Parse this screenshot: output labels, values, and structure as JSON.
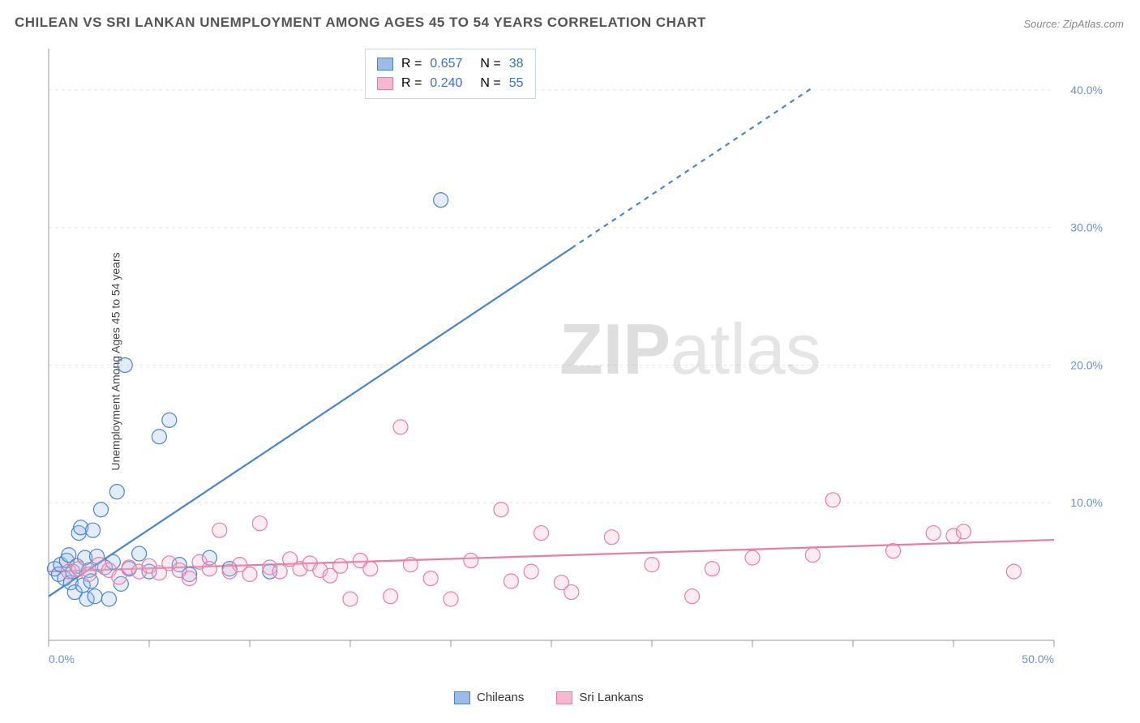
{
  "title": "CHILEAN VS SRI LANKAN UNEMPLOYMENT AMONG AGES 45 TO 54 YEARS CORRELATION CHART",
  "source": "Source: ZipAtlas.com",
  "y_axis_label": "Unemployment Among Ages 45 to 54 years",
  "watermark_bold": "ZIP",
  "watermark_light": "atlas",
  "chart": {
    "type": "scatter",
    "background_color": "#ffffff",
    "grid_color": "#e6e6e6",
    "axis_line_color": "#999999",
    "tick_color": "#999999",
    "xlim": [
      0,
      50
    ],
    "ylim": [
      0,
      43
    ],
    "x_ticks": [
      0,
      5,
      10,
      15,
      20,
      25,
      30,
      35,
      40,
      45,
      50
    ],
    "y_ticks": [
      10,
      20,
      30,
      40
    ],
    "x_tick_labels": {
      "0": "0.0%",
      "50": "50.0%"
    },
    "y_tick_labels": {
      "10": "10.0%",
      "20": "20.0%",
      "30": "30.0%",
      "40": "40.0%"
    },
    "tick_label_color": "#6a8fd8",
    "tick_label_fontsize": 14,
    "marker_radius": 9,
    "marker_stroke_width": 1.2,
    "marker_fill_opacity": 0.28,
    "series": [
      {
        "name": "Chileans",
        "color_stroke": "#4a84d0",
        "color_fill": "#9cbce8",
        "R": "0.657",
        "N": "38",
        "trend": {
          "x1": 0,
          "y1": 3.2,
          "x2": 26,
          "y2": 28.5,
          "dash_extend_to_x": 38,
          "stroke_width": 2.2
        },
        "points": [
          [
            0.3,
            5.2
          ],
          [
            0.5,
            4.8
          ],
          [
            0.6,
            5.5
          ],
          [
            0.8,
            4.5
          ],
          [
            0.9,
            5.8
          ],
          [
            1.0,
            6.2
          ],
          [
            1.1,
            4.2
          ],
          [
            1.2,
            5.0
          ],
          [
            1.3,
            3.5
          ],
          [
            1.4,
            5.4
          ],
          [
            1.5,
            7.8
          ],
          [
            1.6,
            8.2
          ],
          [
            1.7,
            4.0
          ],
          [
            1.8,
            6.0
          ],
          [
            1.9,
            3.0
          ],
          [
            2.0,
            5.1
          ],
          [
            2.1,
            4.3
          ],
          [
            2.2,
            8.0
          ],
          [
            2.3,
            3.2
          ],
          [
            2.4,
            6.1
          ],
          [
            2.6,
            9.5
          ],
          [
            2.8,
            5.3
          ],
          [
            3.0,
            3.0
          ],
          [
            3.2,
            5.7
          ],
          [
            3.4,
            10.8
          ],
          [
            3.6,
            4.1
          ],
          [
            3.8,
            20.0
          ],
          [
            4.0,
            5.2
          ],
          [
            4.5,
            6.3
          ],
          [
            5.0,
            5.0
          ],
          [
            5.5,
            14.8
          ],
          [
            6.0,
            16.0
          ],
          [
            6.5,
            5.5
          ],
          [
            7.0,
            4.8
          ],
          [
            8.0,
            6.0
          ],
          [
            9.0,
            5.2
          ],
          [
            11.0,
            5.0
          ],
          [
            19.5,
            32.0
          ]
        ]
      },
      {
        "name": "Sri Lankans",
        "color_stroke": "#e77da6",
        "color_fill": "#f4b9ce",
        "R": "0.240",
        "N": "55",
        "trend": {
          "x1": 0,
          "y1": 5.0,
          "x2": 50,
          "y2": 7.3,
          "stroke_width": 2.2
        },
        "points": [
          [
            1.0,
            5.0
          ],
          [
            1.5,
            5.2
          ],
          [
            2.0,
            4.8
          ],
          [
            2.5,
            5.5
          ],
          [
            3.0,
            5.1
          ],
          [
            3.5,
            4.6
          ],
          [
            4.0,
            5.3
          ],
          [
            4.5,
            5.0
          ],
          [
            5.0,
            5.4
          ],
          [
            5.5,
            4.9
          ],
          [
            6.0,
            5.6
          ],
          [
            6.5,
            5.1
          ],
          [
            7.0,
            4.5
          ],
          [
            7.5,
            5.7
          ],
          [
            8.0,
            5.2
          ],
          [
            8.5,
            8.0
          ],
          [
            9.0,
            5.0
          ],
          [
            9.5,
            5.5
          ],
          [
            10.0,
            4.8
          ],
          [
            10.5,
            8.5
          ],
          [
            11.0,
            5.3
          ],
          [
            11.5,
            5.0
          ],
          [
            12.0,
            5.9
          ],
          [
            12.5,
            5.2
          ],
          [
            13.0,
            5.6
          ],
          [
            13.5,
            5.1
          ],
          [
            14.0,
            4.7
          ],
          [
            14.5,
            5.4
          ],
          [
            15.0,
            3.0
          ],
          [
            15.5,
            5.8
          ],
          [
            16.0,
            5.2
          ],
          [
            17.0,
            3.2
          ],
          [
            17.5,
            15.5
          ],
          [
            18.0,
            5.5
          ],
          [
            19.0,
            4.5
          ],
          [
            20.0,
            3.0
          ],
          [
            21.0,
            5.8
          ],
          [
            22.5,
            9.5
          ],
          [
            23.0,
            4.3
          ],
          [
            24.0,
            5.0
          ],
          [
            24.5,
            7.8
          ],
          [
            25.5,
            4.2
          ],
          [
            26.0,
            3.5
          ],
          [
            28.0,
            7.5
          ],
          [
            30.0,
            5.5
          ],
          [
            32.0,
            3.2
          ],
          [
            33.0,
            5.2
          ],
          [
            35.0,
            6.0
          ],
          [
            38.0,
            6.2
          ],
          [
            39.0,
            10.2
          ],
          [
            42.0,
            6.5
          ],
          [
            44.0,
            7.8
          ],
          [
            45.0,
            7.6
          ],
          [
            45.5,
            7.9
          ],
          [
            48.0,
            5.0
          ]
        ]
      }
    ]
  },
  "correlation_box": {
    "R_label": "R  =",
    "N_label": "N  =",
    "value_color": "#3d6fc9",
    "border_color": "#c9d6e6",
    "fontsize": 16
  },
  "legend": {
    "items": [
      {
        "label": "Chileans",
        "stroke": "#4a84d0",
        "fill": "#9cbce8"
      },
      {
        "label": "Sri Lankans",
        "stroke": "#e77da6",
        "fill": "#f4b9ce"
      }
    ]
  }
}
